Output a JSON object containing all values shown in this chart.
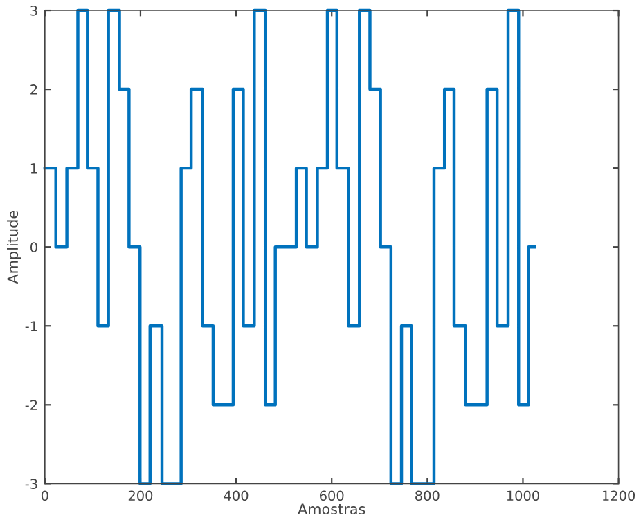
{
  "chart_data": {
    "type": "step",
    "xlabel": "Amostras",
    "ylabel": "Amplitude",
    "xlim": [
      0,
      1200
    ],
    "xticks": [
      0,
      200,
      400,
      600,
      800,
      1000,
      1200
    ],
    "ylim": [
      -3,
      3
    ],
    "yticks": [
      -3,
      -2,
      -1,
      0,
      1,
      2,
      3
    ],
    "grid": false,
    "legend": false,
    "series": [
      {
        "color": "#0072bd",
        "x": [
          0,
          23,
          46,
          69,
          89,
          111,
          133,
          156,
          176,
          199,
          220,
          245,
          285,
          306,
          330,
          352,
          394,
          415,
          438,
          461,
          482,
          526,
          547,
          570,
          591,
          611,
          635,
          658,
          680,
          702,
          724,
          746,
          767,
          814,
          836,
          856,
          880,
          925,
          946,
          969,
          991,
          1012,
          1024
        ],
        "values": [
          1,
          0,
          1,
          3,
          1,
          -1,
          3,
          2,
          0,
          -3,
          -1,
          -3,
          1,
          2,
          -1,
          -2,
          2,
          -1,
          3,
          -2,
          0,
          1,
          0,
          1,
          3,
          1,
          -1,
          3,
          2,
          0,
          -3,
          -1,
          -3,
          1,
          2,
          -1,
          -2,
          2,
          -1,
          3,
          -2,
          0,
          0
        ]
      }
    ]
  }
}
